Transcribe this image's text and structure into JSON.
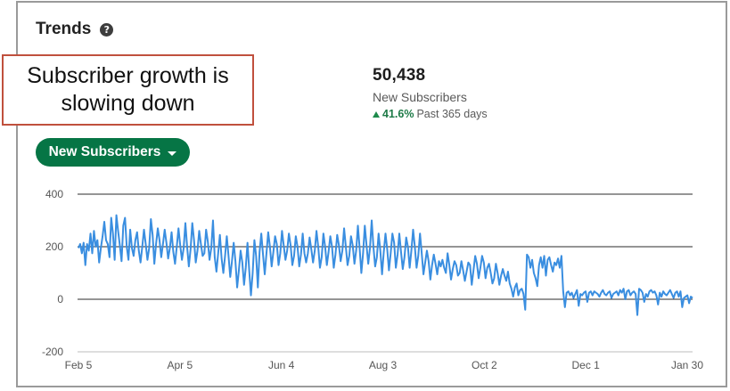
{
  "header": {
    "title": "Trends",
    "help_icon": "question-circle-icon"
  },
  "callout": {
    "text": "Subscriber growth is slowing down"
  },
  "metric": {
    "value": "50,438",
    "label": "New Subscribers",
    "change_pct": "41.6%",
    "change_period": "Past 365 days",
    "change_icon": "triangle-up-icon",
    "change_color": "#1d7a47"
  },
  "dropdown": {
    "label": "New Subscribers",
    "icon": "caret-down-icon",
    "color": "#067545"
  },
  "chart_data": {
    "type": "line",
    "title": "",
    "xlabel": "",
    "ylabel": "",
    "ylim": [
      -200,
      400
    ],
    "y_ticks": [
      400,
      200,
      0,
      -200
    ],
    "x_ticks": [
      "Feb 5",
      "Apr 5",
      "Jun 4",
      "Aug 3",
      "Oct 2",
      "Dec 1",
      "Jan 30"
    ],
    "grid": true,
    "line_color": "#3a8ee0",
    "series": [
      {
        "values": [
          195,
          210,
          175,
          215,
          130,
          210,
          185,
          250,
          175,
          260,
          200,
          225,
          140,
          195,
          240,
          295,
          225,
          210,
          160,
          310,
          250,
          150,
          320,
          260,
          205,
          145,
          280,
          310,
          200,
          150,
          265,
          195,
          165,
          225,
          255,
          185,
          140,
          200,
          265,
          210,
          150,
          195,
          305,
          245,
          135,
          210,
          270,
          225,
          160,
          210,
          265,
          215,
          155,
          195,
          255,
          180,
          135,
          200,
          270,
          205,
          150,
          195,
          290,
          200,
          125,
          190,
          290,
          225,
          140,
          185,
          260,
          210,
          165,
          175,
          265,
          220,
          150,
          195,
          300,
          160,
          105,
          175,
          245,
          155,
          100,
          165,
          240,
          165,
          85,
          145,
          215,
          145,
          45,
          110,
          185,
          140,
          55,
          120,
          215,
          110,
          15,
          100,
          225,
          165,
          45,
          180,
          250,
          170,
          95,
          175,
          255,
          200,
          125,
          180,
          240,
          210,
          130,
          175,
          260,
          205,
          150,
          185,
          250,
          205,
          130,
          165,
          240,
          200,
          125,
          170,
          250,
          175,
          140,
          175,
          235,
          190,
          140,
          185,
          260,
          200,
          120,
          160,
          250,
          200,
          130,
          180,
          240,
          200,
          120,
          170,
          245,
          205,
          145,
          185,
          270,
          200,
          130,
          165,
          240,
          205,
          135,
          185,
          280,
          195,
          100,
          175,
          280,
          205,
          135,
          195,
          300,
          200,
          125,
          160,
          250,
          185,
          95,
          180,
          250,
          190,
          110,
          175,
          250,
          215,
          120,
          170,
          250,
          180,
          115,
          160,
          235,
          200,
          120,
          185,
          265,
          200,
          120,
          165,
          250,
          175,
          95,
          140,
          185,
          145,
          75,
          130,
          170,
          135,
          95,
          145,
          125,
          150,
          120,
          100,
          175,
          130,
          75,
          115,
          145,
          130,
          90,
          100,
          145,
          110,
          70,
          105,
          140,
          130,
          55,
          110,
          165,
          135,
          80,
          120,
          165,
          140,
          80,
          120,
          135,
          100,
          60,
          80,
          135,
          100,
          55,
          90,
          115,
          90,
          70,
          105,
          60,
          40,
          10,
          45,
          60,
          15,
          35,
          40,
          20,
          -40,
          170,
          160,
          120,
          150,
          100,
          80,
          50,
          130,
          160,
          120,
          165,
          90,
          150,
          160,
          130,
          105,
          140,
          130,
          155,
          120,
          165,
          30,
          -30,
          25,
          30,
          15,
          25,
          5,
          20,
          35,
          -25,
          20,
          15,
          25,
          30,
          -10,
          25,
          30,
          15,
          30,
          25,
          20,
          10,
          25,
          35,
          20,
          15,
          25,
          30,
          5,
          20,
          25,
          30,
          15,
          35,
          25,
          40,
          0,
          30,
          35,
          15,
          25,
          30,
          20,
          -60,
          40,
          35,
          25,
          -10,
          20,
          10,
          30,
          35,
          25,
          30,
          15,
          -20,
          25,
          10,
          30,
          20,
          15,
          25,
          35,
          20,
          5,
          25,
          30,
          10,
          30,
          -30,
          5,
          10,
          15,
          -15,
          10,
          5
        ]
      }
    ]
  }
}
